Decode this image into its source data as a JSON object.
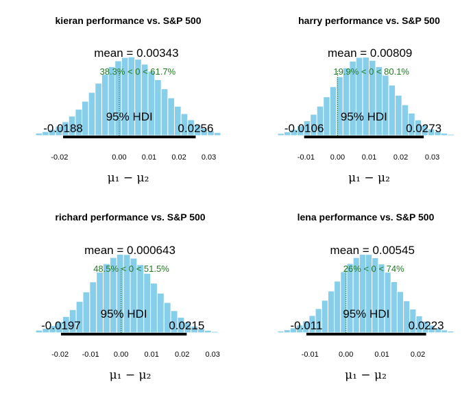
{
  "chart_data": [
    {
      "type": "bar",
      "title": "kieran performance vs. S&P 500",
      "mean_label": "mean = 0.00343",
      "pct_label": "38.3% < 0 < 61.7%",
      "hdi_label": "95% HDI",
      "hdi_low": -0.0188,
      "hdi_high": 0.0256,
      "hdi_low_label": "-0.0188",
      "hdi_high_label": "0.0256",
      "mean": 0.00343,
      "xlabel": "μ₁ − μ₂",
      "xlim": [
        -0.028,
        0.034
      ],
      "ticks": [
        -0.02,
        0.0,
        0.01,
        0.02,
        0.03
      ],
      "tick_labels": [
        "-0.02",
        "0.00",
        "0.01",
        "0.02",
        "0.03"
      ],
      "bar_color": "#87CEEB",
      "sd": 0.0115
    },
    {
      "type": "bar",
      "title": "harry performance vs. S&P 500",
      "mean_label": "mean = 0.00809",
      "pct_label": "19.9% < 0 < 80.1%",
      "hdi_label": "95% HDI",
      "hdi_low": -0.0106,
      "hdi_high": 0.0273,
      "hdi_low_label": "-0.0106",
      "hdi_high_label": "0.0273",
      "mean": 0.00809,
      "xlabel": "μ₁ − μ₂",
      "xlim": [
        -0.019,
        0.039
      ],
      "ticks": [
        -0.01,
        0.0,
        0.01,
        0.02,
        0.03
      ],
      "tick_labels": [
        "-0.01",
        "0.00",
        "0.01",
        "0.02",
        "0.03"
      ],
      "bar_color": "#87CEEB",
      "sd": 0.0097
    },
    {
      "type": "bar",
      "title": "richard performance vs. S&P 500",
      "mean_label": "mean = 0.000643",
      "pct_label": "48.5% < 0 < 51.5%",
      "hdi_label": "95% HDI",
      "hdi_low": -0.0197,
      "hdi_high": 0.0215,
      "hdi_low_label": "-0.0197",
      "hdi_high_label": "0.0215",
      "mean": 0.000643,
      "xlabel": "μ₁ − μ₂",
      "xlim": [
        -0.028,
        0.034
      ],
      "ticks": [
        -0.02,
        -0.01,
        0.0,
        0.01,
        0.02,
        0.03
      ],
      "tick_labels": [
        "-0.02",
        "-0.01",
        "0.00",
        "0.01",
        "0.02",
        "0.03"
      ],
      "bar_color": "#87CEEB",
      "sd": 0.0105
    },
    {
      "type": "bar",
      "title": "lena performance vs. S&P 500",
      "mean_label": "mean = 0.00545",
      "pct_label": "26% < 0 < 74%",
      "hdi_label": "95% HDI",
      "hdi_low": -0.011,
      "hdi_high": 0.0223,
      "hdi_low_label": "-0.011",
      "hdi_high_label": "0.0223",
      "mean": 0.00545,
      "xlabel": "μ₁ − μ₂",
      "xlim": [
        -0.019,
        0.03
      ],
      "ticks": [
        -0.01,
        0.0,
        0.01,
        0.02
      ],
      "tick_labels": [
        "-0.01",
        "0.00",
        "0.01",
        "0.02"
      ],
      "bar_color": "#87CEEB",
      "sd": 0.0085
    }
  ]
}
